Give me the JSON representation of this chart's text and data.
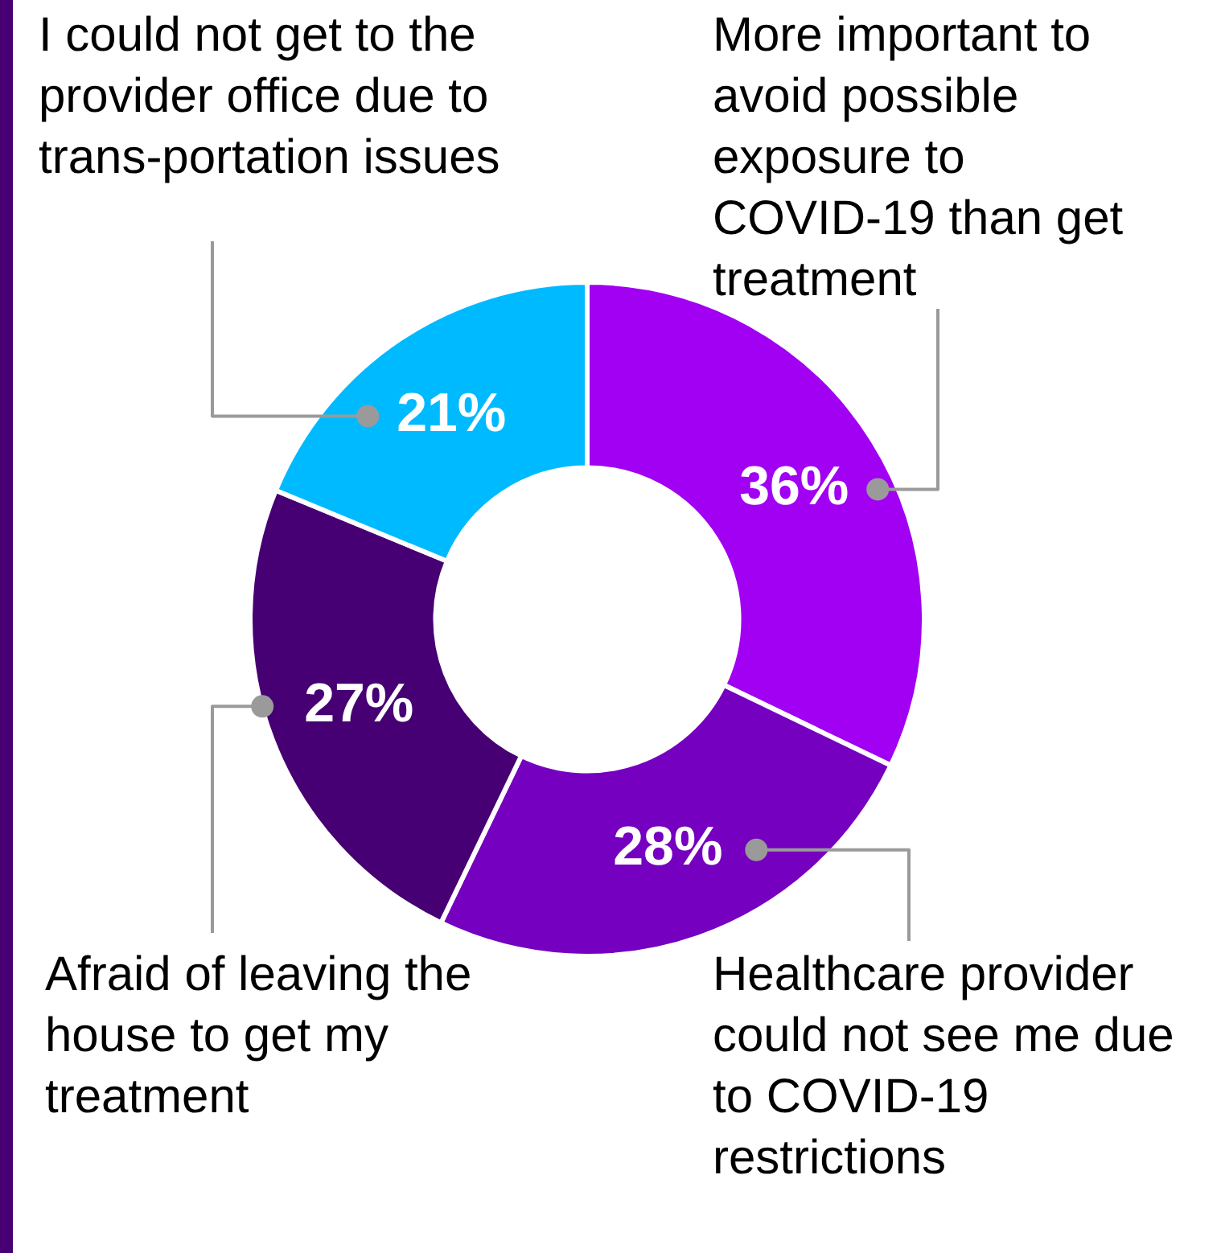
{
  "chart_data": {
    "type": "donut",
    "categories": [
      "More important to avoid possible exposure to COVID-19 than get treatment",
      "Healthcare provider could not see me due to COVID-19 restrictions",
      "Afraid of leaving the house to get my treatment",
      "I could not get to the provider office due to trans-portation issues"
    ],
    "values": [
      36,
      28,
      27,
      21
    ],
    "colors": [
      "#a100f2",
      "#7500c0",
      "#460073",
      "#00baff"
    ],
    "value_labels": [
      "36%",
      "28%",
      "27%",
      "21%"
    ]
  }
}
